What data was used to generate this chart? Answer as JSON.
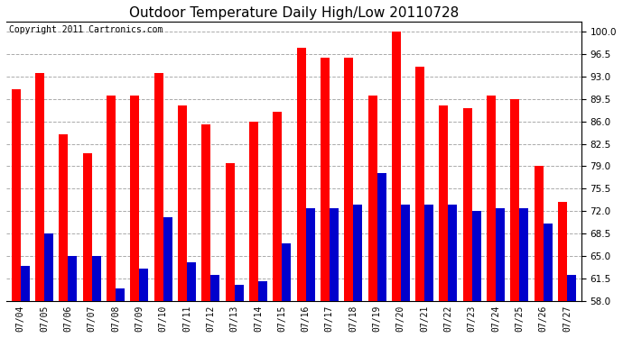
{
  "title": "Outdoor Temperature Daily High/Low 20110728",
  "copyright": "Copyright 2011 Cartronics.com",
  "dates": [
    "07/04",
    "07/05",
    "07/06",
    "07/07",
    "07/08",
    "07/09",
    "07/10",
    "07/11",
    "07/12",
    "07/13",
    "07/14",
    "07/15",
    "07/16",
    "07/17",
    "07/18",
    "07/19",
    "07/20",
    "07/21",
    "07/22",
    "07/23",
    "07/24",
    "07/25",
    "07/26",
    "07/27"
  ],
  "highs": [
    91.0,
    93.5,
    84.0,
    81.0,
    90.0,
    90.0,
    93.5,
    88.5,
    85.5,
    79.5,
    86.0,
    87.5,
    97.5,
    96.0,
    96.0,
    90.0,
    100.0,
    94.5,
    88.5,
    88.0,
    90.0,
    89.5,
    79.0,
    73.5
  ],
  "lows": [
    63.5,
    68.5,
    65.0,
    65.0,
    60.0,
    63.0,
    71.0,
    64.0,
    62.0,
    60.5,
    61.0,
    67.0,
    72.5,
    72.5,
    73.0,
    78.0,
    73.0,
    73.0,
    73.0,
    72.0,
    72.5,
    72.5,
    70.0,
    62.0
  ],
  "high_color": "#ff0000",
  "low_color": "#0000cc",
  "bg_color": "#ffffff",
  "grid_color": "#aaaaaa",
  "ybase": 58.0,
  "ylim": [
    58.0,
    101.5
  ],
  "yticks": [
    58.0,
    61.5,
    65.0,
    68.5,
    72.0,
    75.5,
    79.0,
    82.5,
    86.0,
    89.5,
    93.0,
    96.5,
    100.0
  ],
  "title_fontsize": 11,
  "copyright_fontsize": 7,
  "tick_fontsize": 7.5,
  "xtick_fontsize": 7
}
